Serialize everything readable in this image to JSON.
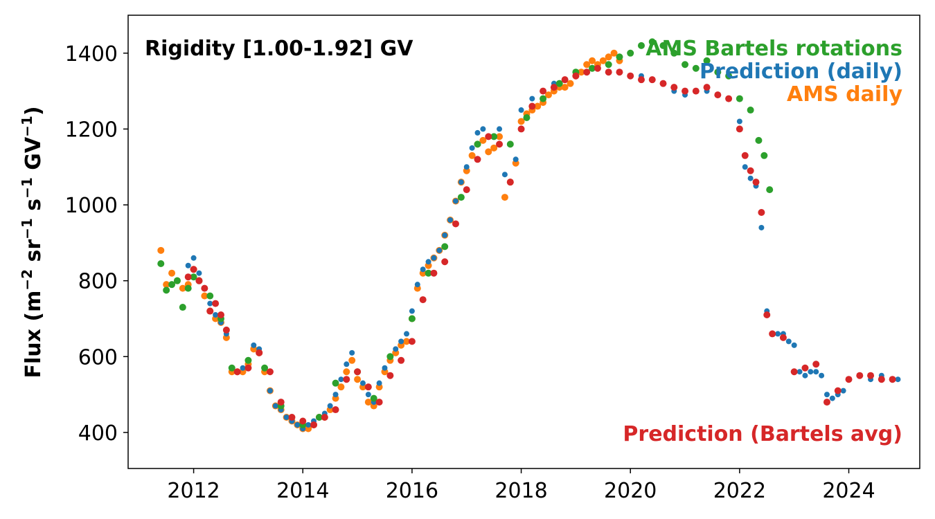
{
  "chart_data": {
    "type": "scatter",
    "annotation": "Rigidity [1.00-1.92] GV",
    "ylabel_parts": [
      "Flux (m",
      "−2",
      " sr",
      "−1",
      " s",
      "−1",
      " GV",
      "−1",
      ")"
    ],
    "xlim": [
      2010.8,
      2025.3
    ],
    "ylim": [
      305,
      1500
    ],
    "xticks": [
      2012,
      2014,
      2016,
      2018,
      2020,
      2022,
      2024
    ],
    "yticks": [
      400,
      600,
      800,
      1000,
      1200,
      1400
    ],
    "grid": false,
    "legend_position": "top-right / bottom-right text labels",
    "series": [
      {
        "name": "AMS daily",
        "color": "#ff7f0e",
        "marker_radius": 5,
        "x": [
          2011.4,
          2011.5,
          2011.6,
          2011.7,
          2011.8,
          2011.9,
          2012.0,
          2012.1,
          2012.2,
          2012.3,
          2012.4,
          2012.5,
          2012.6,
          2012.7,
          2012.8,
          2012.9,
          2013.0,
          2013.1,
          2013.2,
          2013.3,
          2013.4,
          2013.5,
          2013.6,
          2013.7,
          2013.8,
          2013.9,
          2014.0,
          2014.1,
          2014.2,
          2014.3,
          2014.4,
          2014.5,
          2014.6,
          2014.7,
          2014.8,
          2014.9,
          2015.0,
          2015.1,
          2015.2,
          2015.3,
          2015.4,
          2015.5,
          2015.6,
          2015.7,
          2015.8,
          2015.9,
          2016.0,
          2016.1,
          2016.2,
          2016.3,
          2016.4,
          2016.5,
          2016.6,
          2016.7,
          2016.8,
          2016.9,
          2017.0,
          2017.1,
          2017.2,
          2017.3,
          2017.4,
          2017.5,
          2017.6,
          2017.7,
          2017.8,
          2017.9,
          2018.0,
          2018.1,
          2018.2,
          2018.3,
          2018.4,
          2018.5,
          2018.6,
          2018.7,
          2018.8,
          2018.9,
          2019.0,
          2019.1,
          2019.2,
          2019.3,
          2019.4,
          2019.5,
          2019.6,
          2019.7,
          2019.8
        ],
        "y": [
          880,
          790,
          820,
          800,
          780,
          790,
          830,
          800,
          760,
          720,
          700,
          690,
          650,
          560,
          560,
          560,
          580,
          620,
          610,
          560,
          510,
          470,
          460,
          440,
          430,
          420,
          410,
          410,
          420,
          440,
          440,
          460,
          490,
          520,
          560,
          590,
          540,
          520,
          480,
          470,
          520,
          560,
          590,
          610,
          630,
          640,
          700,
          780,
          820,
          840,
          860,
          880,
          920,
          960,
          1010,
          1060,
          1090,
          1130,
          1160,
          1170,
          1140,
          1150,
          1180,
          1020,
          1060,
          1110,
          1220,
          1240,
          1250,
          1260,
          1270,
          1290,
          1300,
          1310,
          1310,
          1320,
          1340,
          1350,
          1370,
          1380,
          1370,
          1380,
          1390,
          1400,
          1380
        ]
      },
      {
        "name": "Prediction (daily)",
        "color": "#1f77b4",
        "marker_radius": 4,
        "x": [
          2011.9,
          2012.0,
          2012.1,
          2012.2,
          2012.3,
          2012.4,
          2012.5,
          2012.6,
          2012.7,
          2012.8,
          2012.9,
          2013.0,
          2013.1,
          2013.2,
          2013.3,
          2013.4,
          2013.5,
          2013.6,
          2013.7,
          2013.8,
          2013.9,
          2014.0,
          2014.1,
          2014.2,
          2014.3,
          2014.4,
          2014.5,
          2014.6,
          2014.7,
          2014.8,
          2014.9,
          2015.0,
          2015.1,
          2015.2,
          2015.3,
          2015.4,
          2015.5,
          2015.6,
          2015.7,
          2015.8,
          2015.9,
          2016.0,
          2016.1,
          2016.2,
          2016.3,
          2016.4,
          2016.5,
          2016.6,
          2016.7,
          2016.8,
          2016.9,
          2017.0,
          2017.1,
          2017.2,
          2017.3,
          2017.4,
          2017.5,
          2017.6,
          2017.7,
          2017.8,
          2017.9,
          2018.0,
          2018.2,
          2018.4,
          2018.6,
          2018.8,
          2019.0,
          2019.2,
          2019.4,
          2019.6,
          2019.8,
          2020.0,
          2020.2,
          2020.4,
          2020.6,
          2020.8,
          2021.0,
          2021.2,
          2021.4,
          2021.6,
          2021.8,
          2022.0,
          2022.1,
          2022.2,
          2022.3,
          2022.4,
          2022.5,
          2022.6,
          2022.7,
          2022.8,
          2022.9,
          2023.0,
          2023.1,
          2023.2,
          2023.3,
          2023.4,
          2023.5,
          2023.6,
          2023.7,
          2023.8,
          2023.9,
          2024.0,
          2024.2,
          2024.4,
          2024.6,
          2024.8,
          2024.9
        ],
        "y": [
          840,
          860,
          820,
          780,
          740,
          710,
          690,
          660,
          570,
          560,
          570,
          590,
          630,
          620,
          570,
          510,
          470,
          460,
          440,
          430,
          420,
          410,
          420,
          430,
          440,
          450,
          470,
          500,
          540,
          580,
          610,
          560,
          530,
          500,
          480,
          530,
          570,
          600,
          620,
          640,
          660,
          720,
          790,
          830,
          850,
          860,
          880,
          920,
          960,
          1010,
          1060,
          1100,
          1150,
          1190,
          1200,
          1180,
          1180,
          1200,
          1080,
          1060,
          1120,
          1250,
          1280,
          1300,
          1320,
          1330,
          1340,
          1350,
          1360,
          1350,
          1350,
          1340,
          1340,
          1330,
          1320,
          1300,
          1290,
          1300,
          1300,
          1290,
          1280,
          1220,
          1100,
          1070,
          1050,
          940,
          720,
          660,
          660,
          660,
          640,
          630,
          560,
          550,
          560,
          560,
          550,
          500,
          490,
          500,
          510,
          540,
          550,
          540,
          550,
          540,
          540
        ]
      },
      {
        "name": "AMS Bartels rotations",
        "color": "#2ca02c",
        "marker_radius": 5,
        "x": [
          2011.4,
          2011.5,
          2011.6,
          2011.7,
          2011.8,
          2011.9,
          2012.0,
          2012.1,
          2012.3,
          2012.5,
          2012.7,
          2013.0,
          2013.3,
          2013.6,
          2014.0,
          2014.3,
          2014.6,
          2015.0,
          2015.3,
          2015.6,
          2016.0,
          2016.3,
          2016.6,
          2016.9,
          2017.2,
          2017.5,
          2017.8,
          2018.1,
          2018.4,
          2018.7,
          2019.0,
          2019.3,
          2019.6,
          2019.8,
          2020.0,
          2020.2,
          2020.4,
          2020.6,
          2020.8,
          2021.0,
          2021.2,
          2021.4,
          2021.6,
          2021.8,
          2022.0,
          2022.2,
          2022.35,
          2022.45,
          2022.55
        ],
        "y": [
          845,
          775,
          790,
          800,
          730,
          780,
          810,
          800,
          760,
          700,
          570,
          590,
          570,
          470,
          420,
          440,
          530,
          560,
          490,
          600,
          700,
          820,
          890,
          1020,
          1160,
          1180,
          1160,
          1230,
          1280,
          1320,
          1350,
          1360,
          1370,
          1390,
          1400,
          1420,
          1430,
          1420,
          1400,
          1370,
          1360,
          1380,
          1350,
          1340,
          1280,
          1250,
          1170,
          1130,
          1040
        ]
      },
      {
        "name": "Prediction (Bartels avg)",
        "color": "#d62728",
        "marker_radius": 5,
        "x": [
          2011.9,
          2012.0,
          2012.1,
          2012.2,
          2012.3,
          2012.4,
          2012.5,
          2012.6,
          2012.8,
          2013.0,
          2013.2,
          2013.4,
          2013.6,
          2013.8,
          2014.0,
          2014.2,
          2014.4,
          2014.6,
          2014.8,
          2015.0,
          2015.2,
          2015.4,
          2015.6,
          2015.8,
          2016.0,
          2016.2,
          2016.4,
          2016.6,
          2016.8,
          2017.0,
          2017.2,
          2017.4,
          2017.6,
          2017.8,
          2018.0,
          2018.2,
          2018.4,
          2018.6,
          2018.8,
          2019.0,
          2019.2,
          2019.4,
          2019.6,
          2019.8,
          2020.0,
          2020.2,
          2020.4,
          2020.6,
          2020.8,
          2021.0,
          2021.2,
          2021.4,
          2021.6,
          2021.8,
          2022.0,
          2022.1,
          2022.2,
          2022.3,
          2022.4,
          2022.5,
          2022.6,
          2022.8,
          2023.0,
          2023.2,
          2023.4,
          2023.6,
          2023.8,
          2024.0,
          2024.2,
          2024.4,
          2024.6,
          2024.8
        ],
        "y": [
          810,
          830,
          800,
          780,
          720,
          740,
          710,
          670,
          560,
          570,
          610,
          560,
          480,
          440,
          430,
          420,
          440,
          460,
          540,
          560,
          520,
          480,
          550,
          590,
          640,
          750,
          820,
          850,
          950,
          1040,
          1120,
          1180,
          1160,
          1060,
          1200,
          1260,
          1300,
          1310,
          1330,
          1340,
          1350,
          1360,
          1350,
          1350,
          1340,
          1330,
          1330,
          1320,
          1310,
          1300,
          1300,
          1310,
          1290,
          1280,
          1200,
          1130,
          1090,
          1060,
          980,
          710,
          660,
          650,
          560,
          570,
          580,
          480,
          510,
          540,
          550,
          550,
          540,
          540
        ]
      }
    ]
  }
}
